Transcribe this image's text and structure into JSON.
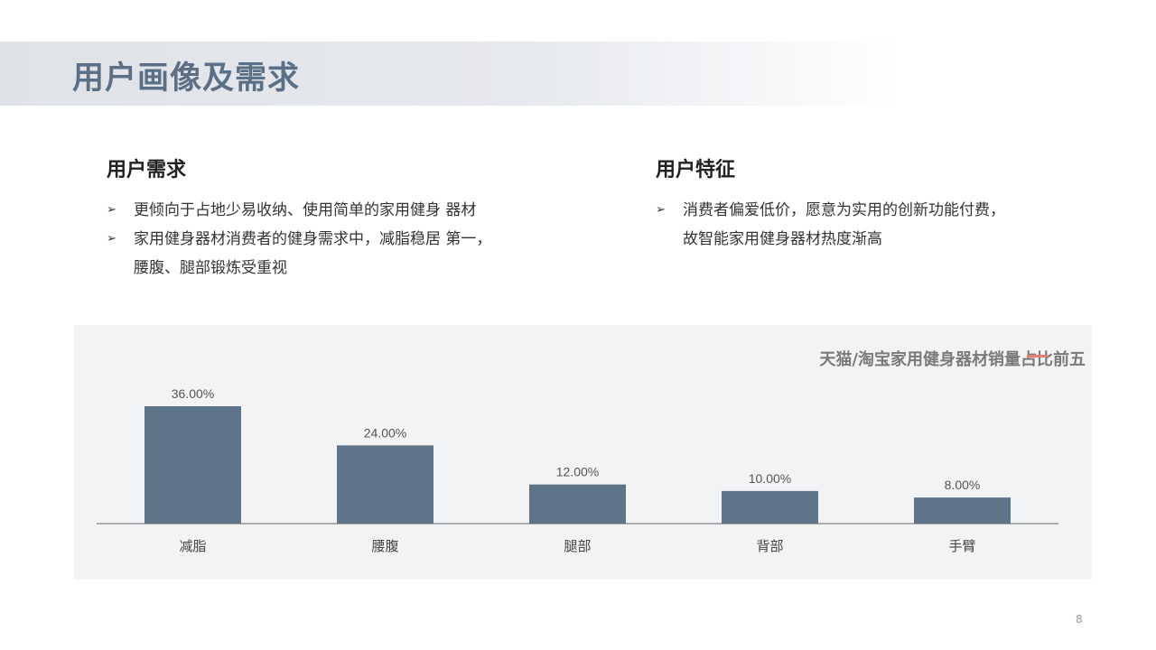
{
  "header": {
    "title": "用户画像及需求"
  },
  "left_section": {
    "heading": "用户需求",
    "bullets": [
      {
        "lines": [
          "更倾向于占地少易收纳、使用简单的家用健身 器材"
        ]
      },
      {
        "lines": [
          "家用健身器材消费者的健身需求中，减脂稳居 第一，",
          "腰腹、腿部锻炼受重视"
        ]
      }
    ]
  },
  "right_section": {
    "heading": "用户特征",
    "bullets": [
      {
        "lines": [
          "消费者偏爱低价，愿意为实用的创新功能付费，",
          "故智能家用健身器材热度渐高"
        ]
      }
    ]
  },
  "bullet_icon": "arrowhead-right-icon",
  "chart_data": {
    "type": "bar",
    "title": "天猫/淘宝家用健身器材销量占比前五",
    "categories": [
      "减脂",
      "腰腹",
      "腿部",
      "背部",
      "手臂"
    ],
    "values": [
      36,
      24,
      12,
      10,
      8
    ],
    "data_labels": [
      "36.00%",
      "24.00%",
      "12.00%",
      "10.00%",
      "8.00%"
    ],
    "unit": "%",
    "ylim": [
      0,
      36
    ],
    "grid": false,
    "y_axis_visible": false,
    "bar_color": "#5e7489",
    "accent_color": "#e8806c"
  },
  "footer": {
    "page_number": "8"
  }
}
